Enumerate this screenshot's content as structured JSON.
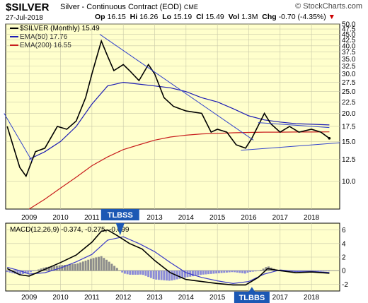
{
  "header": {
    "symbol": "$SILVER",
    "description": "Silver - Continuous Contract (EOD)",
    "exchange": "CME",
    "source": "© StockCharts.com",
    "date": "27-Jul-2018",
    "op_label": "Op",
    "op": "16.15",
    "hi_label": "Hi",
    "hi": "16.26",
    "lo_label": "Lo",
    "lo": "15.19",
    "cl_label": "Cl",
    "cl": "15.49",
    "vol_label": "Vol",
    "vol": "1.3M",
    "chg_label": "Chg",
    "chg": "-0.70 (-4.35%)",
    "chg_arrow": "▼"
  },
  "price_panel": {
    "legend_symbol": "$SILVER (Monthly) 15.49",
    "legend_ema50": "EMA(50) 17.76",
    "legend_ema200": "EMA(200) 16.55",
    "y_ticks": [
      "50.0",
      "47.5",
      "45.0",
      "42.5",
      "40.0",
      "37.5",
      "35.0",
      "32.5",
      "30.0",
      "27.5",
      "25.0",
      "22.5",
      "20.0",
      "17.5",
      "15.0",
      "12.5",
      "10.0"
    ],
    "x_ticks": [
      "2009",
      "2010",
      "2011",
      "2012",
      "2013",
      "2014",
      "2015",
      "2016",
      "2017",
      "2018"
    ]
  },
  "macd_panel": {
    "legend": "MACD(12,26,9) -0.374, -0.275, -0.099",
    "y_ticks": [
      "6",
      "4",
      "2",
      "0",
      "-2"
    ],
    "x_ticks": [
      "2009",
      "2010",
      "2011",
      "2012",
      "2013",
      "2014",
      "2015",
      "2016",
      "2017",
      "2018"
    ],
    "annotation_top": "TLBSS",
    "annotation_bottom": "TLBBS"
  },
  "colors": {
    "panel_bg": "#ffffcc",
    "price": "#000000",
    "ema50": "#1c1cb4",
    "ema200": "#c81e1e",
    "trendline": "#3344cc",
    "macd": "#000000",
    "signal": "#3c3cc8",
    "histogram": "#8c8c8c",
    "annotation_bg": "#1c58b4"
  },
  "chart_data": [
    {
      "type": "line",
      "title": "$SILVER (Monthly)",
      "x_range": [
        2008.25,
        2018.9
      ],
      "ylim": [
        7.5,
        50
      ],
      "y_scale": "log",
      "grid": true,
      "legend_placement": "top-left",
      "series": [
        {
          "name": "$SILVER",
          "x": [
            2008.3,
            2008.7,
            2008.9,
            2009.2,
            2009.5,
            2009.9,
            2010.2,
            2010.5,
            2010.8,
            2011.0,
            2011.3,
            2011.5,
            2011.7,
            2012.0,
            2012.2,
            2012.5,
            2012.8,
            2013.0,
            2013.3,
            2013.6,
            2014.0,
            2014.5,
            2014.8,
            2015.0,
            2015.3,
            2015.6,
            2015.9,
            2016.1,
            2016.5,
            2016.7,
            2017.0,
            2017.3,
            2017.6,
            2018.0,
            2018.3,
            2018.57
          ],
          "y": [
            17.5,
            11.5,
            10.5,
            13.5,
            14,
            17.5,
            17,
            18.5,
            23.5,
            30,
            42,
            36,
            31,
            33,
            31,
            28,
            33,
            30,
            23.5,
            21.5,
            20.5,
            20,
            16.5,
            17,
            16.5,
            14.5,
            14,
            15.5,
            20,
            18,
            16.5,
            17.5,
            16.5,
            17,
            16.5,
            15.49
          ]
        },
        {
          "name": "EMA(50)",
          "x": [
            2009.0,
            2009.5,
            2010.0,
            2010.5,
            2011.0,
            2011.5,
            2012.0,
            2012.5,
            2013.0,
            2013.5,
            2014.0,
            2014.5,
            2015.0,
            2015.5,
            2016.0,
            2016.5,
            2017.0,
            2017.5,
            2018.0,
            2018.57
          ],
          "y": [
            12.5,
            13.5,
            15,
            17.5,
            22,
            26.5,
            27.5,
            27,
            26.5,
            26,
            25,
            23.5,
            22.5,
            21,
            19.5,
            18.7,
            18.3,
            18.0,
            17.9,
            17.76
          ]
        },
        {
          "name": "EMA(200)",
          "x": [
            2009.0,
            2009.5,
            2010.0,
            2010.5,
            2011.0,
            2011.5,
            2012.0,
            2012.5,
            2013.0,
            2013.5,
            2014.0,
            2014.5,
            2015.0,
            2015.5,
            2016.0,
            2016.5,
            2017.0,
            2017.5,
            2018.0,
            2018.57
          ],
          "y": [
            7.5,
            8.3,
            9.3,
            10.4,
            11.7,
            12.8,
            13.8,
            14.5,
            15.2,
            15.7,
            16.0,
            16.2,
            16.3,
            16.4,
            16.45,
            16.5,
            16.5,
            16.52,
            16.53,
            16.55
          ]
        }
      ]
    },
    {
      "type": "line",
      "title": "MACD(12,26,9)",
      "x_range": [
        2008.25,
        2018.9
      ],
      "ylim": [
        -3,
        7
      ],
      "grid": true,
      "legend_placement": "top-left",
      "series": [
        {
          "name": "MACD",
          "x": [
            2008.3,
            2008.7,
            2009.0,
            2009.5,
            2010.0,
            2010.5,
            2011.0,
            2011.3,
            2011.5,
            2011.8,
            2012.2,
            2012.6,
            2013.0,
            2013.5,
            2014.0,
            2014.5,
            2015.0,
            2015.5,
            2015.9,
            2016.3,
            2016.6,
            2017.0,
            2017.5,
            2018.0,
            2018.57
          ],
          "y": [
            0.3,
            -0.6,
            -0.8,
            0.2,
            1.2,
            2.3,
            4.2,
            5.8,
            6.0,
            5.2,
            4.0,
            3.2,
            1.5,
            -0.3,
            -1.3,
            -1.6,
            -1.9,
            -2.1,
            -2.1,
            -1.0,
            0.3,
            0.0,
            -0.3,
            -0.2,
            -0.374
          ]
        },
        {
          "name": "Signal",
          "x": [
            2008.3,
            2008.7,
            2009.0,
            2009.5,
            2010.0,
            2010.5,
            2011.0,
            2011.5,
            2012.0,
            2012.5,
            2013.0,
            2013.5,
            2014.0,
            2014.5,
            2015.0,
            2015.5,
            2016.0,
            2016.5,
            2017.0,
            2017.5,
            2018.0,
            2018.57
          ],
          "y": [
            0.5,
            0.0,
            -0.5,
            -0.3,
            0.4,
            1.3,
            2.4,
            4.5,
            5.0,
            4.0,
            2.8,
            1.2,
            -0.3,
            -1.0,
            -1.5,
            -1.9,
            -1.6,
            -0.5,
            0.1,
            -0.1,
            -0.1,
            -0.275
          ]
        }
      ],
      "histogram": {
        "name": "MACD-Histogram",
        "last": -0.099
      },
      "annotations": [
        {
          "text": "TLBSS",
          "x": 2011.9,
          "y": 5.0
        },
        {
          "text": "TLBBS",
          "x": 2016.1,
          "y": -2.1
        }
      ]
    }
  ]
}
